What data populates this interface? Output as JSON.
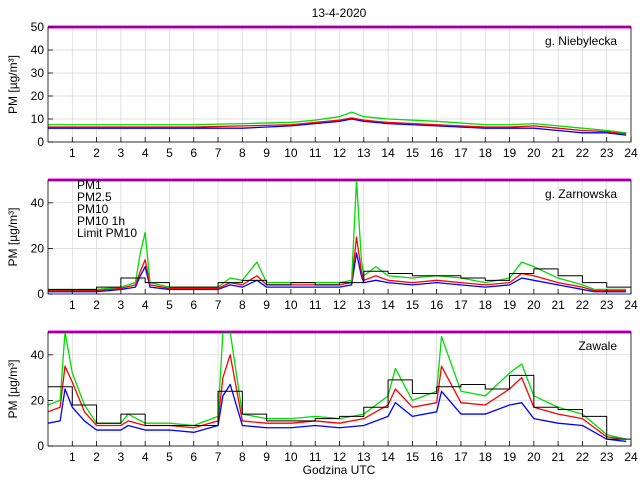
{
  "chart_data": [
    {
      "type": "line",
      "title": "13-4-2020",
      "station": "g. Niebylecka",
      "ylabel": "PM [µg/m³]",
      "xlabel": "",
      "xlim": [
        0,
        24
      ],
      "ylim": [
        0,
        50
      ],
      "yticks": [
        0,
        10,
        20,
        30,
        40,
        50
      ],
      "xticks": [
        1,
        2,
        3,
        4,
        5,
        6,
        7,
        8,
        9,
        10,
        11,
        12,
        13,
        14,
        15,
        16,
        17,
        18,
        19,
        20,
        21,
        22,
        23,
        24
      ],
      "limit": {
        "name": "Limit PM10",
        "value": 50,
        "color": "#ff00ff"
      },
      "series": [
        {
          "name": "PM1",
          "color": "#0000ff",
          "x": [
            0,
            2,
            4,
            6,
            8,
            10,
            11,
            12,
            12.5,
            13,
            14,
            16,
            18,
            19,
            20,
            21,
            22,
            23,
            23.8
          ],
          "y": [
            6,
            6,
            6,
            6,
            6,
            7,
            8,
            9,
            10,
            9,
            8,
            7,
            6,
            6,
            6,
            5,
            4,
            4,
            3
          ]
        },
        {
          "name": "PM2.5",
          "color": "#ff0000",
          "x": [
            0,
            2,
            4,
            6,
            8,
            10,
            11,
            12,
            12.5,
            13,
            14,
            16,
            18,
            19,
            20,
            21,
            22,
            23,
            23.8
          ],
          "y": [
            6.5,
            6.5,
            6.5,
            6.5,
            7,
            7.5,
            8.5,
            9.5,
            10.5,
            9.5,
            8.5,
            7.5,
            6.5,
            6.5,
            7,
            6,
            5,
            4.5,
            3.5
          ]
        },
        {
          "name": "PM10",
          "color": "#00dd00",
          "x": [
            0,
            2,
            4,
            6,
            8,
            10,
            11,
            12,
            12.5,
            13,
            14,
            16,
            18,
            19,
            20,
            21,
            22,
            23,
            23.8
          ],
          "y": [
            7.5,
            7.5,
            7.5,
            7.5,
            8,
            8.5,
            9.5,
            11,
            13,
            11,
            10,
            9,
            7.5,
            7.5,
            8,
            7,
            6,
            5,
            4
          ]
        }
      ]
    },
    {
      "type": "line",
      "station": "g. Zarnowska",
      "ylabel": "PM [µg/m³]",
      "xlabel": "",
      "xlim": [
        0,
        24
      ],
      "ylim": [
        0,
        50
      ],
      "yticks": [
        0,
        20,
        40
      ],
      "xticks": [
        1,
        2,
        3,
        4,
        5,
        6,
        7,
        8,
        9,
        10,
        11,
        12,
        13,
        14,
        15,
        16,
        17,
        18,
        19,
        20,
        21,
        22,
        23,
        24
      ],
      "limit": {
        "name": "Limit PM10",
        "value": 50,
        "color": "#ff00ff"
      },
      "legend": [
        "PM1",
        "PM2.5",
        "PM10",
        "PM10 1h",
        "Limit PM10"
      ],
      "series": [
        {
          "name": "PM1",
          "color": "#0000ff",
          "x": [
            0,
            2,
            3,
            3.6,
            3.8,
            4,
            4.2,
            5,
            6,
            7,
            7.5,
            8,
            8.6,
            9,
            10,
            11,
            12,
            12.5,
            12.7,
            12.9,
            13,
            13.5,
            14,
            15,
            16,
            17,
            18,
            19,
            19.5,
            20,
            21,
            22,
            22.5,
            23,
            23.8
          ],
          "y": [
            1,
            1,
            2,
            3,
            8,
            12,
            3,
            2,
            2,
            2,
            4,
            3,
            6,
            3,
            3,
            3,
            3,
            4,
            18,
            8,
            5,
            6,
            5,
            4,
            5,
            4,
            3,
            4,
            7,
            6,
            4,
            2,
            1,
            1,
            1
          ]
        },
        {
          "name": "PM2.5",
          "color": "#ff0000",
          "x": [
            0,
            2,
            3,
            3.6,
            3.8,
            4,
            4.2,
            5,
            6,
            7,
            7.5,
            8,
            8.6,
            9,
            10,
            11,
            12,
            12.5,
            12.7,
            12.9,
            13,
            13.5,
            14,
            15,
            16,
            17,
            18,
            19,
            19.5,
            20,
            21,
            22,
            22.5,
            23,
            23.8
          ],
          "y": [
            1.5,
            1.5,
            2.5,
            4,
            10,
            15,
            4,
            2.5,
            2.5,
            2.5,
            5,
            4,
            8,
            4,
            4,
            4,
            4,
            5,
            25,
            10,
            6,
            8,
            6,
            5,
            6,
            5,
            4,
            5,
            9,
            8,
            5,
            3,
            1.5,
            1.5,
            1.5
          ]
        },
        {
          "name": "PM10",
          "color": "#00dd00",
          "x": [
            0,
            2,
            3,
            3.6,
            3.8,
            4,
            4.2,
            5,
            6,
            7,
            7.5,
            8,
            8.6,
            9,
            10,
            11,
            12,
            12.5,
            12.7,
            12.9,
            13,
            13.5,
            14,
            15,
            16,
            17,
            18,
            19,
            19.5,
            20,
            21,
            22,
            22.5,
            23,
            23.8
          ],
          "y": [
            2,
            2,
            3,
            5,
            18,
            27,
            5,
            3,
            3,
            3,
            7,
            6,
            14,
            5,
            5,
            5,
            5,
            6,
            50,
            15,
            8,
            12,
            8,
            7,
            8,
            7,
            5,
            7,
            14,
            12,
            7,
            4,
            2,
            2,
            2
          ]
        },
        {
          "name": "PM10 1h",
          "color": "#000000",
          "step": true,
          "x": [
            0,
            1,
            2,
            3,
            4,
            5,
            6,
            7,
            8,
            9,
            10,
            11,
            12,
            13,
            14,
            15,
            16,
            17,
            18,
            19,
            20,
            21,
            22,
            23,
            24
          ],
          "y": [
            2,
            2,
            3,
            7,
            5,
            3,
            3,
            5,
            6,
            4,
            5,
            4,
            5,
            10,
            9,
            8,
            8,
            7,
            6,
            9,
            11,
            8,
            5,
            3,
            2
          ]
        }
      ]
    },
    {
      "type": "line",
      "station": "Zawale",
      "ylabel": "PM [µg/m³]",
      "xlabel": "Godzina UTC",
      "xlim": [
        0,
        24
      ],
      "ylim": [
        0,
        50
      ],
      "yticks": [
        0,
        20,
        40
      ],
      "xticks": [
        1,
        2,
        3,
        4,
        5,
        6,
        7,
        8,
        9,
        10,
        11,
        12,
        13,
        14,
        15,
        16,
        17,
        18,
        19,
        20,
        21,
        22,
        23,
        24
      ],
      "limit": {
        "name": "Limit PM10",
        "value": 50,
        "color": "#ff00ff"
      },
      "series": [
        {
          "name": "PM1",
          "color": "#0000ff",
          "x": [
            0,
            0.5,
            0.7,
            1,
            1.5,
            2,
            3,
            3.3,
            4,
            5,
            6,
            7,
            7.2,
            7.5,
            8,
            9,
            10,
            11,
            12,
            13,
            14,
            14.3,
            15,
            16,
            16.2,
            17,
            18,
            19,
            19.5,
            20,
            21,
            22,
            23,
            23.8
          ],
          "y": [
            10,
            11,
            25,
            17,
            11,
            7,
            7,
            9,
            7,
            7,
            6,
            9,
            22,
            27,
            9,
            8,
            8,
            9,
            8,
            9,
            13,
            19,
            13,
            15,
            24,
            14,
            14,
            18,
            19,
            12,
            10,
            9,
            3,
            2
          ]
        },
        {
          "name": "PM2.5",
          "color": "#ff0000",
          "x": [
            0,
            0.5,
            0.7,
            1,
            1.5,
            2,
            3,
            3.3,
            4,
            5,
            6,
            7,
            7.2,
            7.5,
            8,
            9,
            10,
            11,
            12,
            13,
            14,
            14.3,
            15,
            16,
            16.2,
            17,
            18,
            19,
            19.5,
            20,
            21,
            22,
            23,
            23.8
          ],
          "y": [
            15,
            17,
            35,
            28,
            15,
            9,
            9,
            11,
            9,
            9,
            8,
            11,
            30,
            40,
            11,
            10,
            10,
            11,
            10,
            12,
            18,
            25,
            17,
            19,
            35,
            19,
            18,
            25,
            30,
            17,
            14,
            12,
            4,
            3
          ]
        },
        {
          "name": "PM10",
          "color": "#00dd00",
          "x": [
            0,
            0.5,
            0.7,
            1,
            1.5,
            2,
            3,
            3.3,
            4,
            5,
            6,
            7,
            7.2,
            7.5,
            8,
            9,
            10,
            11,
            12,
            13,
            14,
            14.3,
            15,
            16,
            16.2,
            17,
            18,
            19,
            19.5,
            20,
            21,
            22,
            23,
            23.8
          ],
          "y": [
            18,
            20,
            50,
            32,
            18,
            10,
            10,
            14,
            10,
            10,
            9,
            13,
            50,
            50,
            14,
            12,
            12,
            13,
            12,
            14,
            22,
            34,
            20,
            24,
            48,
            24,
            22,
            32,
            36,
            22,
            17,
            14,
            5,
            3
          ]
        },
        {
          "name": "PM10 1h",
          "color": "#000000",
          "step": true,
          "x": [
            0,
            1,
            2,
            3,
            4,
            5,
            6,
            7,
            8,
            9,
            10,
            11,
            12,
            13,
            14,
            15,
            16,
            17,
            18,
            19,
            20,
            21,
            22,
            23,
            24
          ],
          "y": [
            26,
            18,
            10,
            14,
            9,
            9,
            9,
            24,
            14,
            11,
            11,
            12,
            13,
            17,
            29,
            23,
            26,
            27,
            25,
            31,
            17,
            16,
            13,
            3,
            3
          ]
        }
      ]
    }
  ]
}
